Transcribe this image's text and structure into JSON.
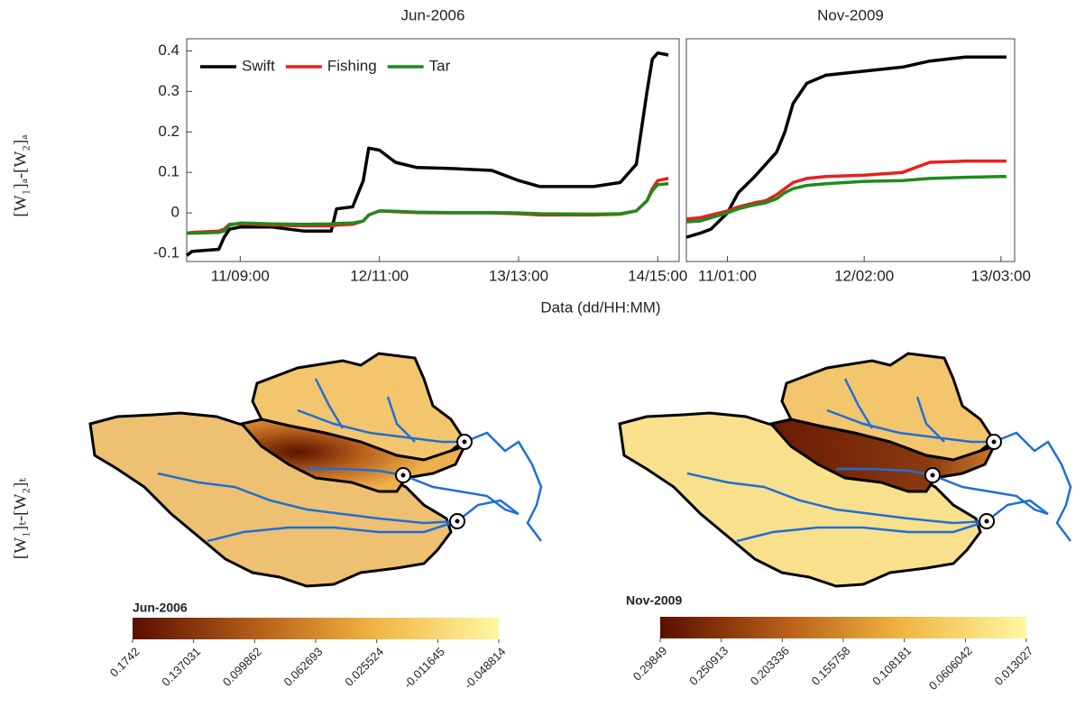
{
  "chart_data": [
    {
      "type": "line",
      "title": "Jun-2006",
      "x": [
        "10/23:00",
        "11/00:00",
        "11/05:00",
        "11/06:00",
        "11/07:00",
        "11/09:00",
        "11/15:00",
        "11/21:00",
        "12/02:00",
        "12/03:00",
        "12/06:00",
        "12/08:00",
        "12/09:00",
        "12/11:00",
        "12/14:00",
        "12/18:00",
        "13/00:00",
        "13/08:00",
        "13/13:00",
        "13/17:00",
        "14/03:00",
        "14/08:00",
        "14/11:00",
        "14/13:00",
        "14/14:00",
        "14/15:00",
        "14/17:00"
      ],
      "series": [
        {
          "name": "Swift",
          "color": "#000000",
          "values": [
            -0.105,
            -0.095,
            -0.09,
            -0.06,
            -0.04,
            -0.035,
            -0.035,
            -0.045,
            -0.045,
            0.01,
            0.015,
            0.08,
            0.16,
            0.155,
            0.125,
            0.112,
            0.11,
            0.105,
            0.08,
            0.065,
            0.065,
            0.075,
            0.12,
            0.3,
            0.38,
            0.395,
            0.39
          ]
        },
        {
          "name": "Fishing",
          "color": "#e8201c",
          "values": [
            -0.05,
            -0.048,
            -0.045,
            -0.04,
            -0.028,
            -0.027,
            -0.03,
            -0.032,
            -0.032,
            -0.03,
            -0.028,
            -0.02,
            -0.005,
            0.005,
            0.003,
            0.001,
            0,
            0,
            -0.002,
            -0.005,
            -0.005,
            -0.003,
            0.005,
            0.03,
            0.06,
            0.08,
            0.085
          ]
        },
        {
          "name": "Tar",
          "color": "#1e8a1e",
          "values": [
            -0.05,
            -0.05,
            -0.048,
            -0.045,
            -0.03,
            -0.025,
            -0.027,
            -0.028,
            -0.027,
            -0.026,
            -0.025,
            -0.02,
            -0.005,
            0.005,
            0.004,
            0.002,
            0.001,
            0.001,
            0,
            -0.002,
            -0.003,
            -0.002,
            0.005,
            0.03,
            0.055,
            0.07,
            0.072
          ]
        }
      ],
      "xlim": [
        "10/23:00",
        "14/19:00"
      ],
      "xticks": [
        "11/09:00",
        "12/11:00",
        "13/13:00",
        "14/15:00"
      ],
      "ylim": [
        -0.12,
        0.43
      ],
      "yticks": [
        -0.1,
        0,
        0.1,
        0.2,
        0.3,
        0.4
      ],
      "legend": "upper left"
    },
    {
      "type": "line",
      "title": "Nov-2009",
      "x": [
        "10/17:30",
        "10/20:00",
        "10/22:00",
        "11/01:00",
        "11/03:00",
        "11/06:00",
        "11/08:00",
        "11/10:00",
        "11/11:30",
        "11/13:00",
        "11/15:30",
        "11/19:00",
        "12/02:00",
        "12/09:00",
        "12/14:00",
        "12/20:30",
        "13/03:00",
        "13/04:00"
      ],
      "series": [
        {
          "name": "Swift",
          "color": "#000000",
          "values": [
            -0.06,
            -0.05,
            -0.04,
            0,
            0.05,
            0.09,
            0.12,
            0.15,
            0.2,
            0.27,
            0.32,
            0.34,
            0.35,
            0.36,
            0.375,
            0.385,
            0.385,
            0.385
          ]
        },
        {
          "name": "Fishing",
          "color": "#e8201c",
          "values": [
            -0.015,
            -0.012,
            -0.005,
            0.005,
            0.015,
            0.025,
            0.03,
            0.045,
            0.06,
            0.075,
            0.085,
            0.09,
            0.093,
            0.1,
            0.125,
            0.128,
            0.128,
            0.128
          ]
        },
        {
          "name": "Tar",
          "color": "#1e8a1e",
          "values": [
            -0.022,
            -0.02,
            -0.012,
            0,
            0.01,
            0.02,
            0.025,
            0.035,
            0.05,
            0.06,
            0.068,
            0.072,
            0.078,
            0.08,
            0.085,
            0.088,
            0.09,
            0.09
          ]
        }
      ],
      "xlim": [
        "10/17:30",
        "13/05:30"
      ],
      "xticks": [
        "11/01:00",
        "12/02:00",
        "13/03:00"
      ],
      "ylim": [
        -0.12,
        0.43
      ]
    }
  ],
  "figure": {
    "xlabel": "Data (dd/HH:MM)",
    "row_labels": [
      "[W₁]ₐ-[W₂]ₐ",
      "[W₁]ₜ-[W₂]ₜ"
    ]
  },
  "maps": [
    {
      "title": "Jun-2006",
      "colorbar": {
        "lim": [
          0.1742,
          -0.048814
        ],
        "ticks": [
          0.1742,
          0.137031,
          0.099862,
          0.062693,
          0.025524,
          -0.011645,
          -0.048814
        ]
      }
    },
    {
      "title": "Nov-2009",
      "colorbar": {
        "lim": [
          0.29849,
          0.013027
        ],
        "ticks": [
          0.29849,
          0.250913,
          0.203336,
          0.155758,
          0.108181,
          0.0606042,
          0.013027
        ]
      }
    }
  ]
}
